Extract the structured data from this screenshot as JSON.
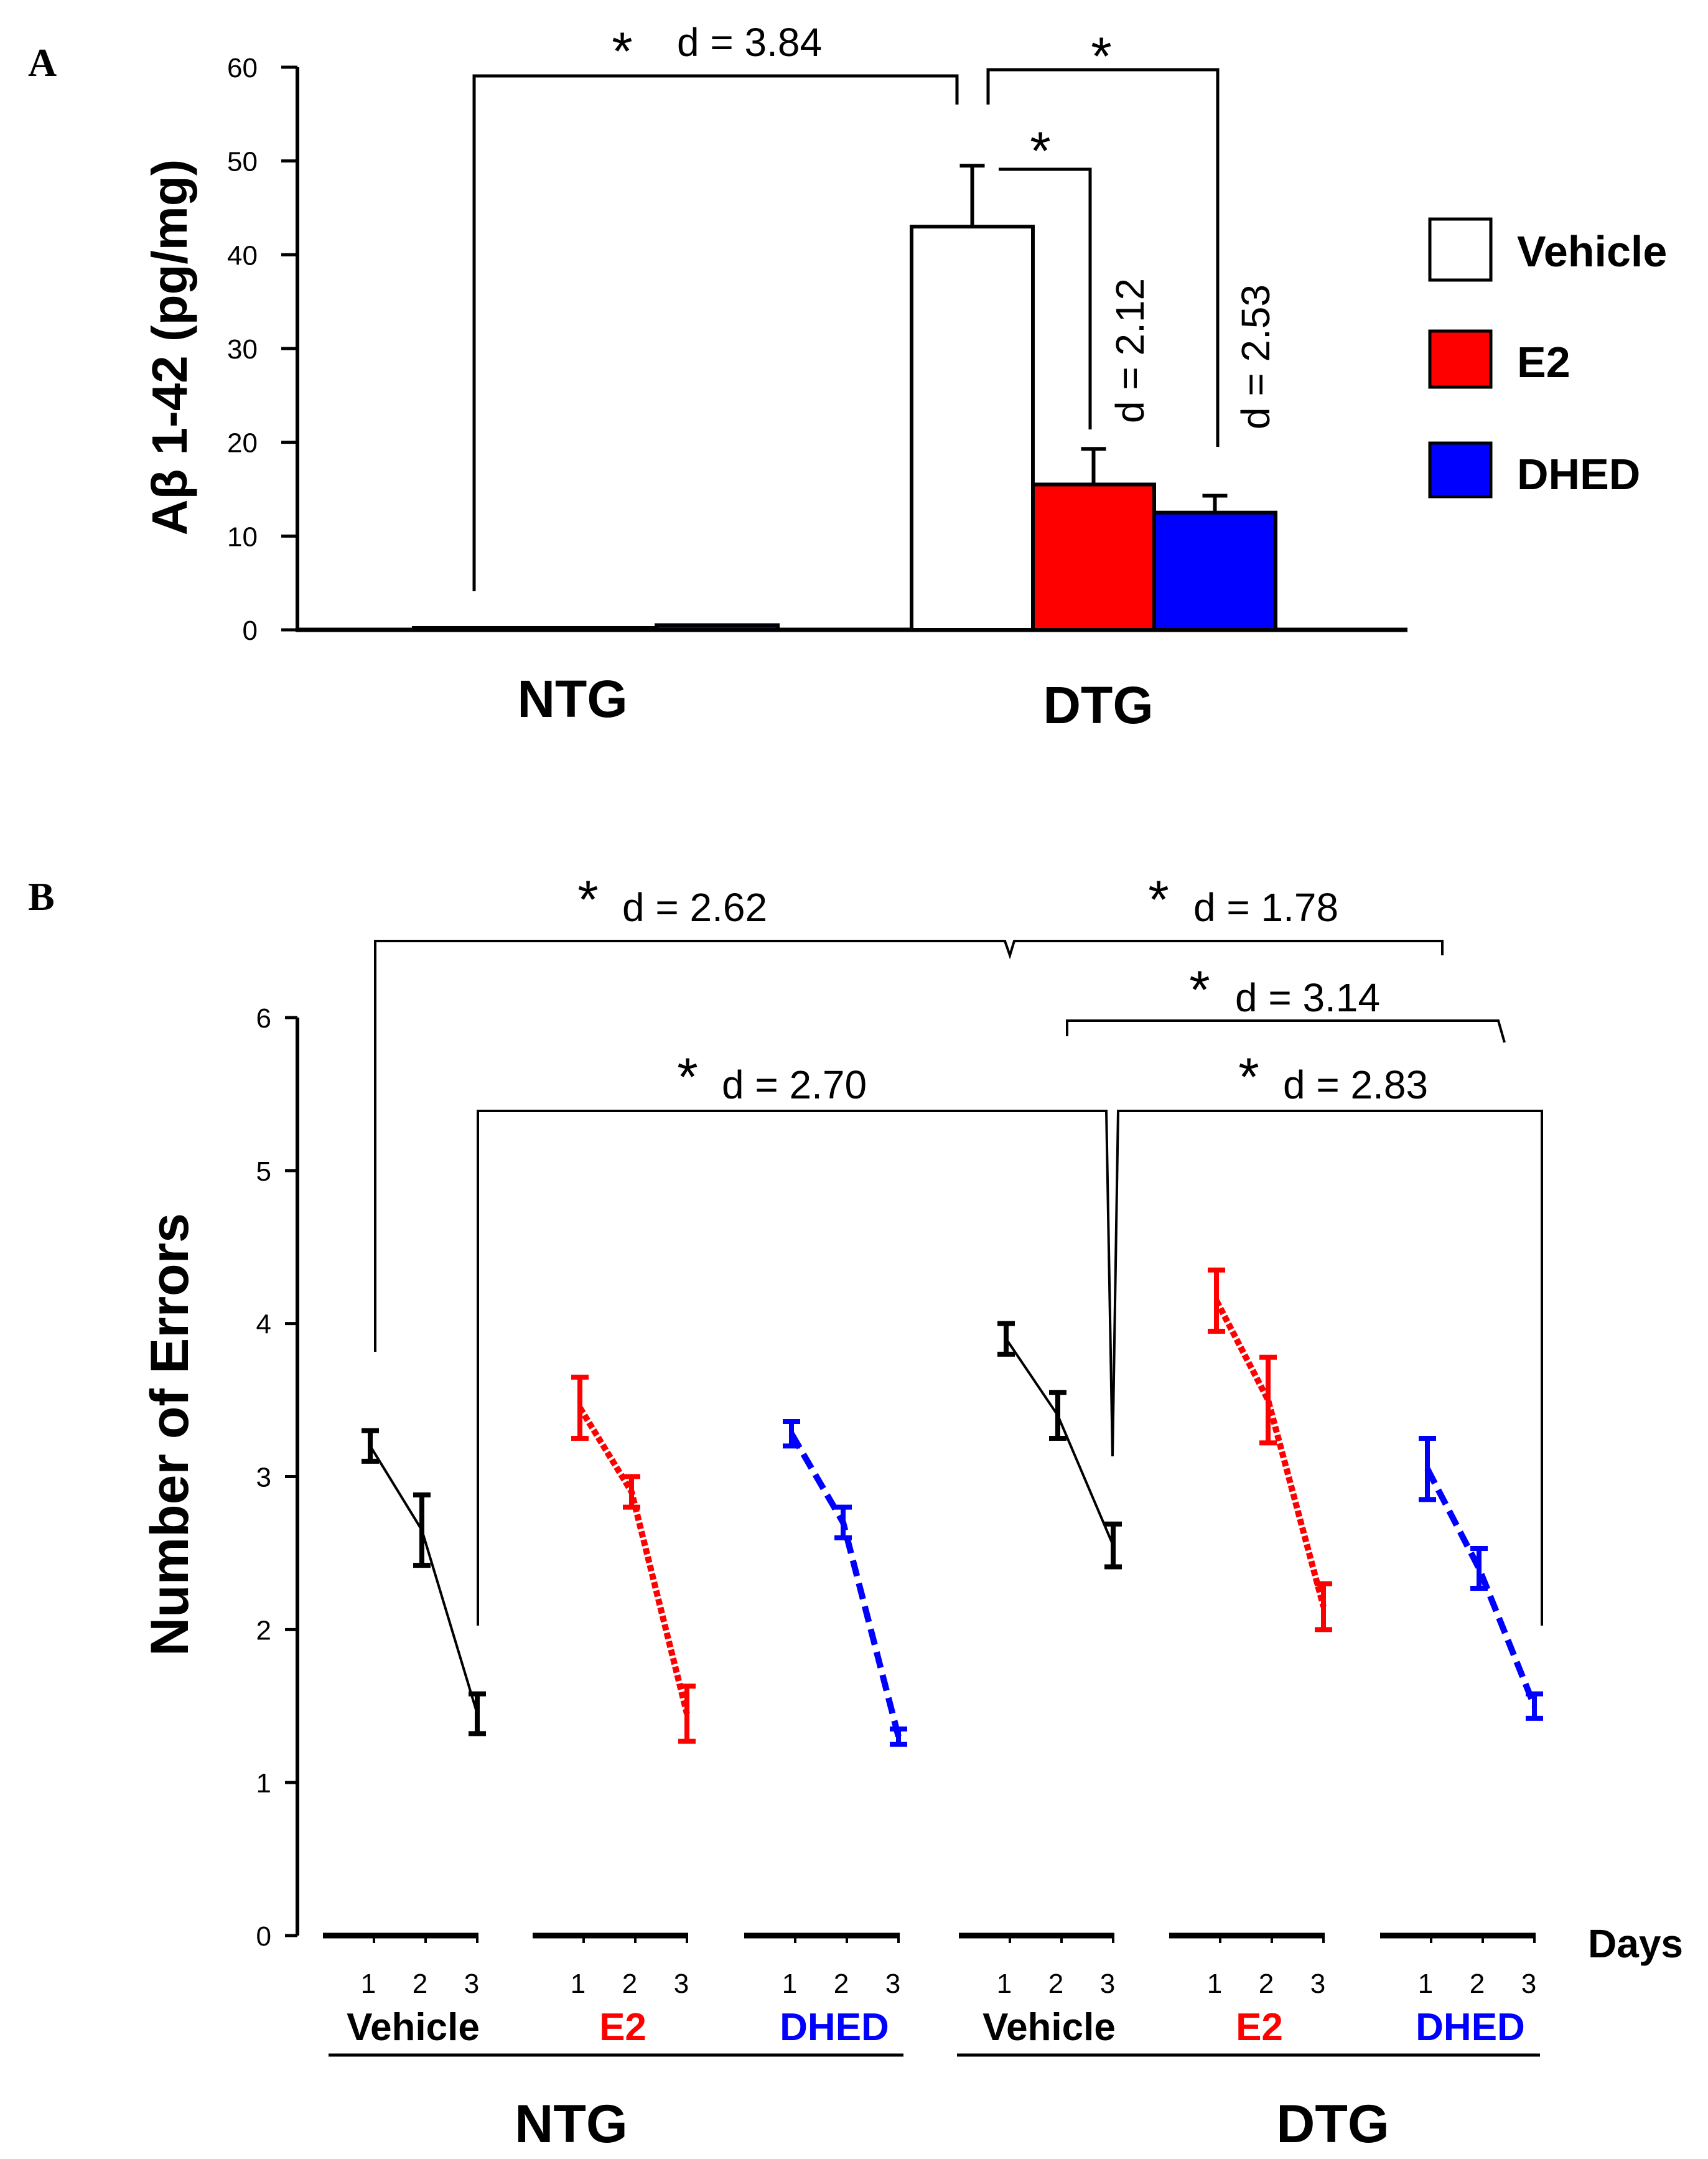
{
  "chart_data": [
    {
      "panel_label": "A",
      "type": "bar",
      "ylabel": "Aβ 1-42 (pg/mg)",
      "ylim": [
        0,
        60
      ],
      "yticks": [
        "0",
        "10",
        "20",
        "30",
        "40",
        "50",
        "60"
      ],
      "categories": [
        "NTG",
        "DTG"
      ],
      "series": [
        {
          "name": "Vehicle",
          "color": "#ffffff",
          "values": [
            0.2,
            43
          ],
          "errors": [
            0,
            6.5
          ]
        },
        {
          "name": "E2",
          "color": "#ff0000",
          "values": [
            0.2,
            15.5
          ],
          "errors": [
            0,
            3.8
          ]
        },
        {
          "name": "DHED",
          "color": "#0000ff",
          "values": [
            0.5,
            12.5
          ],
          "errors": [
            0,
            1.8
          ]
        }
      ],
      "legend": {
        "position": "right",
        "entries": [
          "Vehicle",
          "E2",
          "DHED"
        ]
      },
      "annotations": [
        {
          "star": "*",
          "effect": "d = 3.84"
        },
        {
          "star": "*",
          "effect": ""
        },
        {
          "star": "*",
          "effect": "d = 2.12"
        },
        {
          "star": "",
          "effect": "d = 2.53"
        }
      ]
    },
    {
      "panel_label": "B",
      "type": "line",
      "ylabel": "Number of Errors",
      "ylim": [
        0,
        6
      ],
      "yticks": [
        "0",
        "1",
        "2",
        "3",
        "4",
        "5",
        "6"
      ],
      "xlabel": "Days",
      "day_labels": [
        "1",
        "2",
        "3"
      ],
      "genotypes": [
        "NTG",
        "DTG"
      ],
      "groups": [
        {
          "name": "Vehicle",
          "genotype": "NTG",
          "color": "#000000",
          "dash": "solid",
          "values": [
            3.2,
            2.65,
            1.45
          ],
          "errors": [
            0.1,
            0.23,
            0.13
          ]
        },
        {
          "name": "E2",
          "genotype": "NTG",
          "color": "#ff0000",
          "dash": "dotted",
          "values": [
            3.45,
            2.9,
            1.45
          ],
          "errors": [
            0.2,
            0.1,
            0.18
          ]
        },
        {
          "name": "DHED",
          "genotype": "NTG",
          "color": "#0000ff",
          "dash": "dashed",
          "values": [
            3.28,
            2.7,
            1.3
          ],
          "errors": [
            0.08,
            0.1,
            0.05
          ]
        },
        {
          "name": "Vehicle",
          "genotype": "DTG",
          "color": "#000000",
          "dash": "solid",
          "values": [
            3.9,
            3.4,
            2.55
          ],
          "errors": [
            0.1,
            0.15,
            0.14
          ]
        },
        {
          "name": "E2",
          "genotype": "DTG",
          "color": "#ff0000",
          "dash": "dotted",
          "values": [
            4.15,
            3.5,
            2.15
          ],
          "errors": [
            0.2,
            0.28,
            0.15
          ]
        },
        {
          "name": "DHED",
          "genotype": "DTG",
          "color": "#0000ff",
          "dash": "dashed",
          "values": [
            3.05,
            2.4,
            1.5
          ],
          "errors": [
            0.2,
            0.13,
            0.08
          ]
        }
      ],
      "annotations": [
        {
          "star": "*",
          "effect": "d = 2.62"
        },
        {
          "star": "*",
          "effect": "d = 1.78"
        },
        {
          "star": "*",
          "effect": "d = 3.14"
        },
        {
          "star": "*",
          "effect": "d = 2.70"
        },
        {
          "star": "*",
          "effect": "d = 2.83"
        }
      ]
    }
  ]
}
